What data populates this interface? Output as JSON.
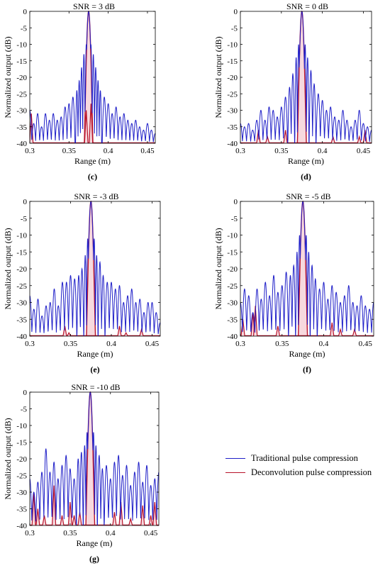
{
  "figure": {
    "legend": {
      "traditional_label": "Traditional pulse compression",
      "deconvolution_label": "Deconvolution  pulse compression"
    },
    "colors": {
      "traditional": "#1f1fc8",
      "deconvolution": "#b8122a",
      "deconv_fill": "#f7d9de"
    }
  },
  "chart_data": [
    {
      "type": "line",
      "panel": "(c)",
      "title": "SNR = 3 dB",
      "xlabel": "Range (m)",
      "ylabel": "Normalized output (dB)",
      "xlim": [
        0.3,
        0.46
      ],
      "ylim": [
        -40,
        0
      ],
      "xticks": [
        0.3,
        0.35,
        0.4,
        0.45
      ],
      "yticks": [
        0,
        -5,
        -10,
        -15,
        -20,
        -25,
        -30,
        -35,
        -40
      ],
      "series": [
        {
          "name": "Traditional pulse compression",
          "peak_x": 0.375,
          "lobe_peaks": [
            [
              0.3,
              -30
            ],
            [
              0.305,
              -34
            ],
            [
              0.31,
              -31
            ],
            [
              0.315,
              -35
            ],
            [
              0.32,
              -31
            ],
            [
              0.325,
              -33
            ],
            [
              0.33,
              -31
            ],
            [
              0.335,
              -33
            ],
            [
              0.34,
              -32
            ],
            [
              0.345,
              -29
            ],
            [
              0.35,
              -28
            ],
            [
              0.355,
              -26
            ],
            [
              0.36,
              -24
            ],
            [
              0.363,
              -21
            ],
            [
              0.366,
              -17
            ],
            [
              0.369,
              -13
            ],
            [
              0.372,
              -10
            ],
            [
              0.378,
              -10
            ],
            [
              0.381,
              -13
            ],
            [
              0.384,
              -17
            ],
            [
              0.387,
              -21
            ],
            [
              0.39,
              -24
            ],
            [
              0.395,
              -26
            ],
            [
              0.4,
              -28
            ],
            [
              0.405,
              -31
            ],
            [
              0.41,
              -29
            ],
            [
              0.415,
              -32
            ],
            [
              0.42,
              -31
            ],
            [
              0.425,
              -33
            ],
            [
              0.43,
              -34
            ],
            [
              0.435,
              -33
            ],
            [
              0.44,
              -35
            ],
            [
              0.445,
              -36
            ],
            [
              0.45,
              -34
            ],
            [
              0.455,
              -36
            ],
            [
              0.46,
              -37
            ]
          ]
        },
        {
          "name": "Deconvolution  pulse compression",
          "peak_x": 0.375,
          "spikes": [
            [
              0.302,
              -31
            ],
            [
              0.372,
              -30
            ],
            [
              0.378,
              -28
            ]
          ]
        }
      ]
    },
    {
      "type": "line",
      "panel": "(d)",
      "title": "SNR = 0 dB",
      "xlabel": "Range (m)",
      "ylabel": "Normalized output (dB)",
      "xlim": [
        0.3,
        0.46
      ],
      "ylim": [
        -40,
        0
      ],
      "xticks": [
        0.3,
        0.35,
        0.4,
        0.45
      ],
      "yticks": [
        0,
        -5,
        -10,
        -15,
        -20,
        -25,
        -30,
        -35,
        -40
      ],
      "series": [
        {
          "name": "Traditional pulse compression",
          "peak_x": 0.375,
          "lobe_peaks": [
            [
              0.3,
              -34
            ],
            [
              0.305,
              -35
            ],
            [
              0.31,
              -34
            ],
            [
              0.315,
              -36
            ],
            [
              0.32,
              -33
            ],
            [
              0.325,
              -30
            ],
            [
              0.33,
              -33
            ],
            [
              0.335,
              -29
            ],
            [
              0.34,
              -30
            ],
            [
              0.345,
              -32
            ],
            [
              0.35,
              -29
            ],
            [
              0.355,
              -26
            ],
            [
              0.36,
              -23
            ],
            [
              0.364,
              -19
            ],
            [
              0.368,
              -14
            ],
            [
              0.371,
              -10
            ],
            [
              0.379,
              -10
            ],
            [
              0.382,
              -14
            ],
            [
              0.386,
              -18
            ],
            [
              0.39,
              -22
            ],
            [
              0.395,
              -25
            ],
            [
              0.4,
              -27
            ],
            [
              0.405,
              -30
            ],
            [
              0.41,
              -29
            ],
            [
              0.415,
              -32
            ],
            [
              0.42,
              -33
            ],
            [
              0.425,
              -30
            ],
            [
              0.43,
              -33
            ],
            [
              0.435,
              -35
            ],
            [
              0.44,
              -33
            ],
            [
              0.445,
              -30
            ],
            [
              0.45,
              -34
            ],
            [
              0.455,
              -35
            ],
            [
              0.46,
              -36
            ]
          ]
        },
        {
          "name": "Deconvolution  pulse compression",
          "peak_x": 0.375,
          "spikes": [
            [
              0.322,
              -36
            ],
            [
              0.333,
              -38
            ],
            [
              0.355,
              -36
            ],
            [
              0.413,
              -38
            ],
            [
              0.445,
              -38
            ],
            [
              0.452,
              -36
            ]
          ]
        }
      ]
    },
    {
      "type": "line",
      "panel": "(e)",
      "title": "SNR = -3 dB",
      "xlabel": "Range (m)",
      "ylabel": "Normalized output (dB)",
      "xlim": [
        0.3,
        0.46
      ],
      "ylim": [
        -40,
        0
      ],
      "xticks": [
        0.3,
        0.35,
        0.4,
        0.45
      ],
      "yticks": [
        0,
        -5,
        -10,
        -15,
        -20,
        -25,
        -30,
        -35,
        -40
      ],
      "series": [
        {
          "name": "Traditional pulse compression",
          "peak_x": 0.375,
          "lobe_peaks": [
            [
              0.3,
              -28
            ],
            [
              0.305,
              -32
            ],
            [
              0.31,
              -29
            ],
            [
              0.315,
              -34
            ],
            [
              0.32,
              -31
            ],
            [
              0.325,
              -30
            ],
            [
              0.33,
              -26
            ],
            [
              0.335,
              -31
            ],
            [
              0.34,
              -24
            ],
            [
              0.345,
              -24
            ],
            [
              0.35,
              -22
            ],
            [
              0.355,
              -23
            ],
            [
              0.36,
              -22
            ],
            [
              0.364,
              -20
            ],
            [
              0.368,
              -16
            ],
            [
              0.371,
              -11
            ],
            [
              0.379,
              -11
            ],
            [
              0.382,
              -16
            ],
            [
              0.386,
              -18
            ],
            [
              0.39,
              -22
            ],
            [
              0.395,
              -24
            ],
            [
              0.4,
              -24
            ],
            [
              0.405,
              -26
            ],
            [
              0.41,
              -25
            ],
            [
              0.415,
              -30
            ],
            [
              0.42,
              -28
            ],
            [
              0.425,
              -26
            ],
            [
              0.43,
              -30
            ],
            [
              0.435,
              -29
            ],
            [
              0.44,
              -33
            ],
            [
              0.445,
              -30
            ],
            [
              0.45,
              -30
            ],
            [
              0.455,
              -33
            ],
            [
              0.46,
              -36
            ]
          ]
        },
        {
          "name": "Deconvolution  pulse compression",
          "peak_x": 0.375,
          "spikes": [
            [
              0.343,
              -37
            ],
            [
              0.348,
              -39
            ],
            [
              0.41,
              -37
            ],
            [
              0.418,
              -39
            ],
            [
              0.437,
              -38
            ]
          ]
        }
      ]
    },
    {
      "type": "line",
      "panel": "(f)",
      "title": "SNR = -5 dB",
      "xlabel": "Range (m)",
      "ylabel": "Normalized output (dB)",
      "xlim": [
        0.3,
        0.46
      ],
      "ylim": [
        -40,
        0
      ],
      "xticks": [
        0.3,
        0.35,
        0.4,
        0.45
      ],
      "yticks": [
        0,
        -5,
        -10,
        -15,
        -20,
        -25,
        -30,
        -35,
        -40
      ],
      "series": [
        {
          "name": "Traditional pulse compression",
          "peak_x": 0.375,
          "lobe_peaks": [
            [
              0.3,
              -30
            ],
            [
              0.305,
              -26
            ],
            [
              0.31,
              -28
            ],
            [
              0.315,
              -33
            ],
            [
              0.32,
              -26
            ],
            [
              0.325,
              -29
            ],
            [
              0.33,
              -24
            ],
            [
              0.335,
              -28
            ],
            [
              0.34,
              -22
            ],
            [
              0.345,
              -27
            ],
            [
              0.35,
              -25
            ],
            [
              0.355,
              -21
            ],
            [
              0.36,
              -22
            ],
            [
              0.364,
              -19
            ],
            [
              0.368,
              -15
            ],
            [
              0.371,
              -10
            ],
            [
              0.379,
              -10
            ],
            [
              0.382,
              -15
            ],
            [
              0.386,
              -19
            ],
            [
              0.39,
              -23
            ],
            [
              0.395,
              -26
            ],
            [
              0.4,
              -24
            ],
            [
              0.405,
              -29
            ],
            [
              0.41,
              -25
            ],
            [
              0.415,
              -27
            ],
            [
              0.42,
              -30
            ],
            [
              0.425,
              -28
            ],
            [
              0.43,
              -25
            ],
            [
              0.435,
              -30
            ],
            [
              0.44,
              -31
            ],
            [
              0.445,
              -28
            ],
            [
              0.45,
              -31
            ],
            [
              0.455,
              -32
            ],
            [
              0.46,
              -30
            ]
          ]
        },
        {
          "name": "Deconvolution  pulse compression",
          "peak_x": 0.375,
          "spikes": [
            [
              0.303,
              -35
            ],
            [
              0.315,
              -33
            ],
            [
              0.318,
              -31
            ],
            [
              0.345,
              -37
            ],
            [
              0.41,
              -36
            ],
            [
              0.42,
              -38
            ],
            [
              0.437,
              -38
            ]
          ]
        }
      ]
    },
    {
      "type": "line",
      "panel": "(g)",
      "title": "SNR = -10 dB",
      "xlabel": "Range (m)",
      "ylabel": "Normalized output (dB)",
      "xlim": [
        0.3,
        0.46
      ],
      "ylim": [
        -40,
        0
      ],
      "xticks": [
        0.3,
        0.35,
        0.4,
        0.45
      ],
      "yticks": [
        0,
        -5,
        -10,
        -15,
        -20,
        -25,
        -30,
        -35,
        -40
      ],
      "series": [
        {
          "name": "Traditional pulse compression",
          "peak_x": 0.375,
          "lobe_peaks": [
            [
              0.3,
              -26
            ],
            [
              0.305,
              -30
            ],
            [
              0.31,
              -27
            ],
            [
              0.315,
              -24
            ],
            [
              0.32,
              -17
            ],
            [
              0.325,
              -24
            ],
            [
              0.33,
              -21
            ],
            [
              0.335,
              -26
            ],
            [
              0.34,
              -22
            ],
            [
              0.345,
              -19
            ],
            [
              0.35,
              -23
            ],
            [
              0.355,
              -26
            ],
            [
              0.36,
              -20
            ],
            [
              0.364,
              -18
            ],
            [
              0.368,
              -16
            ],
            [
              0.371,
              -12
            ],
            [
              0.379,
              -12
            ],
            [
              0.382,
              -16
            ],
            [
              0.386,
              -19
            ],
            [
              0.39,
              -23
            ],
            [
              0.395,
              -22
            ],
            [
              0.4,
              -26
            ],
            [
              0.405,
              -21
            ],
            [
              0.41,
              -19
            ],
            [
              0.415,
              -25
            ],
            [
              0.42,
              -22
            ],
            [
              0.425,
              -28
            ],
            [
              0.43,
              -24
            ],
            [
              0.435,
              -21
            ],
            [
              0.44,
              -27
            ],
            [
              0.445,
              -22
            ],
            [
              0.45,
              -28
            ],
            [
              0.455,
              -26
            ],
            [
              0.46,
              -24
            ]
          ]
        },
        {
          "name": "Deconvolution  pulse compression",
          "peak_x": 0.375,
          "spikes": [
            [
              0.305,
              -30
            ],
            [
              0.31,
              -35
            ],
            [
              0.318,
              -37
            ],
            [
              0.33,
              -28
            ],
            [
              0.34,
              -37
            ],
            [
              0.35,
              -33
            ],
            [
              0.355,
              -37
            ],
            [
              0.362,
              -36
            ],
            [
              0.405,
              -36
            ],
            [
              0.413,
              -33
            ],
            [
              0.425,
              -38
            ],
            [
              0.44,
              -34
            ],
            [
              0.45,
              -37
            ],
            [
              0.455,
              -33
            ]
          ]
        }
      ]
    }
  ]
}
